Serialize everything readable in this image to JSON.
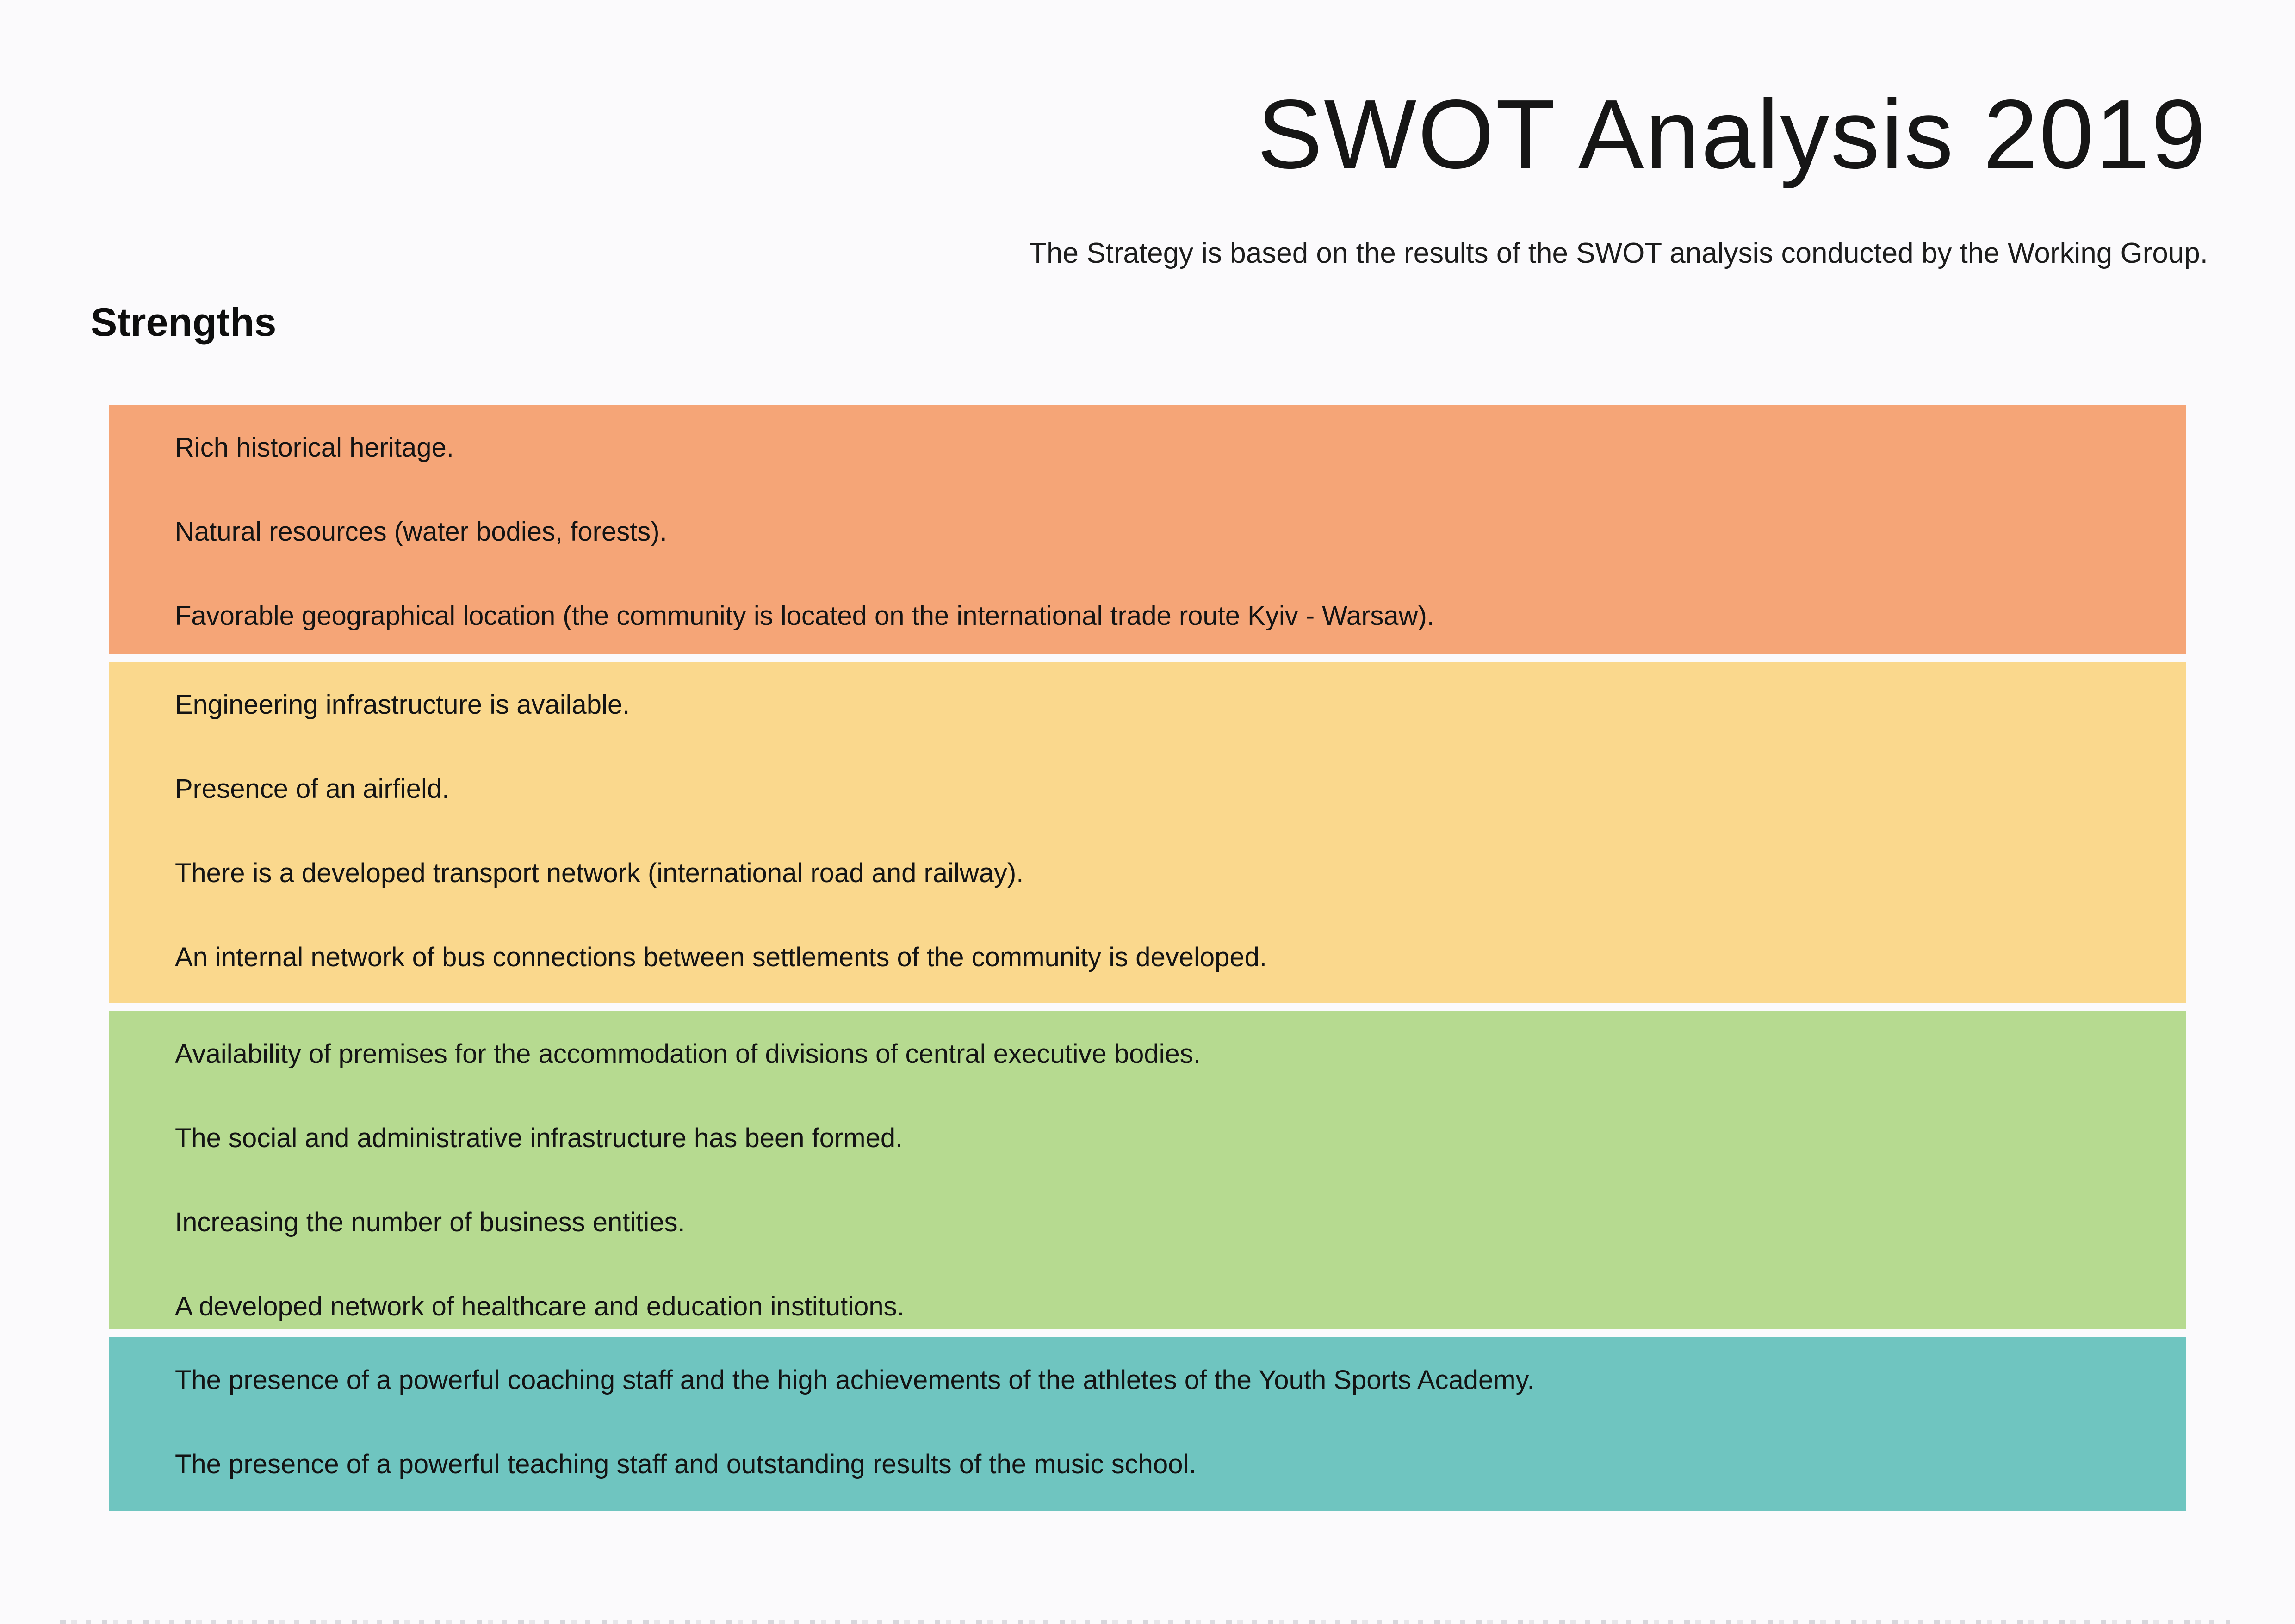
{
  "page": {
    "title": "SWOT Analysis 2019",
    "subtitle": "The Strategy is based on the results of the SWOT analysis conducted by the Working Group.",
    "section_heading": "Strengths",
    "background_color": "#FBFAFC",
    "text_color": "#1A1A1A"
  },
  "groups": [
    {
      "name": "heritage-and-location",
      "color": "#F5A577",
      "items": [
        "Rich historical heritage.",
        "Natural resources (water bodies, forests).",
        "Favorable geographical location (the community is located on the international trade route Kyiv - Warsaw)."
      ]
    },
    {
      "name": "infrastructure-and-transport",
      "color": "#FAD88D",
      "items": [
        "Engineering infrastructure is available.",
        "Presence of an airfield.",
        "There is a developed transport network (international road and railway).",
        "An internal network of bus connections between settlements of the community is developed."
      ]
    },
    {
      "name": "administrative-and-social",
      "color": "#B6DA90",
      "items": [
        "Availability of premises for the accommodation of divisions of central executive bodies.",
        "The social and administrative infrastructure has been formed.",
        "Increasing the number of business entities.",
        "A developed network of healthcare and education institutions."
      ]
    },
    {
      "name": "sports-and-education",
      "color": "#6FC5C0",
      "items": [
        "The presence of a powerful coaching staff and the high achievements of the athletes of the Youth Sports Academy.",
        "The presence of a powerful teaching staff and outstanding results of the music school."
      ]
    }
  ]
}
